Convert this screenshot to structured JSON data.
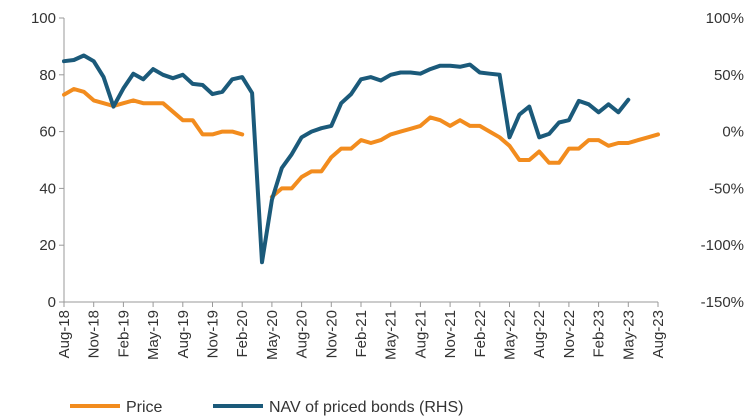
{
  "chart_data": {
    "type": "line",
    "title": "",
    "xlabel": "",
    "ylabel": "",
    "y_left": {
      "min": 0,
      "max": 100,
      "ticks": [
        0,
        20,
        40,
        60,
        80,
        100
      ],
      "tick_labels": [
        "0",
        "20",
        "40",
        "60",
        "80",
        "100"
      ]
    },
    "y_right": {
      "min": -150,
      "max": 100,
      "unit": "%",
      "ticks": [
        -150,
        -100,
        -50,
        0,
        50,
        100
      ],
      "tick_labels": [
        "-150%",
        "-100%",
        "-50%",
        "0%",
        "50%",
        "100%"
      ]
    },
    "x": [
      "Aug-18",
      "Sep-18",
      "Oct-18",
      "Nov-18",
      "Dec-18",
      "Jan-19",
      "Feb-19",
      "Mar-19",
      "Apr-19",
      "May-19",
      "Jun-19",
      "Jul-19",
      "Aug-19",
      "Sep-19",
      "Oct-19",
      "Nov-19",
      "Dec-19",
      "Jan-20",
      "Feb-20",
      "Mar-20",
      "Apr-20",
      "May-20",
      "Jun-20",
      "Jul-20",
      "Aug-20",
      "Sep-20",
      "Oct-20",
      "Nov-20",
      "Dec-20",
      "Jan-21",
      "Feb-21",
      "Mar-21",
      "Apr-21",
      "May-21",
      "Jun-21",
      "Jul-21",
      "Aug-21",
      "Sep-21",
      "Oct-21",
      "Nov-21",
      "Dec-21",
      "Jan-22",
      "Feb-22",
      "Mar-22",
      "Apr-22",
      "May-22",
      "Jun-22",
      "Jul-22",
      "Aug-22",
      "Sep-22",
      "Oct-22",
      "Nov-22",
      "Dec-22",
      "Jan-23",
      "Feb-23",
      "Mar-23",
      "Apr-23",
      "May-23",
      "Jun-23",
      "Jul-23",
      "Aug-23"
    ],
    "x_tick_labels": [
      "Aug-18",
      "Nov-18",
      "Feb-19",
      "May-19",
      "Aug-19",
      "Nov-19",
      "Feb-20",
      "May-20",
      "Aug-20",
      "Nov-20",
      "Feb-21",
      "May-21",
      "Aug-21",
      "Nov-21",
      "Feb-22",
      "May-22",
      "Aug-22",
      "Nov-22",
      "Feb-23",
      "May-23",
      "Aug-23"
    ],
    "series": [
      {
        "name": "Price",
        "axis": "left",
        "color": "#F28C1E",
        "values": [
          73,
          75,
          74,
          71,
          70,
          69,
          70,
          71,
          70,
          70,
          70,
          67,
          64,
          64,
          59,
          59,
          60,
          60,
          59,
          null,
          null,
          37,
          40,
          40,
          44,
          46,
          46,
          51,
          54,
          54,
          57,
          56,
          57,
          59,
          60,
          61,
          62,
          65,
          64,
          62,
          64,
          62,
          62,
          60,
          58,
          55,
          50,
          50,
          53,
          49,
          49,
          54,
          54,
          57,
          57,
          55,
          56,
          56,
          57,
          58,
          59
        ]
      },
      {
        "name": "NAV of priced bonds (RHS)",
        "axis": "right",
        "color": "#1B5A7A",
        "values": [
          62,
          63,
          67,
          62,
          48,
          22,
          38,
          51,
          46,
          55,
          50,
          47,
          50,
          42,
          41,
          33,
          35,
          46,
          48,
          34,
          -115,
          -60,
          -32,
          -20,
          -5,
          0,
          3,
          5,
          25,
          33,
          46,
          48,
          45,
          50,
          52,
          52,
          51,
          55,
          58,
          58,
          57,
          59,
          52,
          51,
          50,
          -5,
          15,
          22,
          -5,
          -2,
          8,
          10,
          27,
          24,
          17,
          24,
          17,
          28,
          null,
          null,
          null
        ]
      }
    ],
    "legend": {
      "position": "bottom"
    },
    "grid": false
  }
}
